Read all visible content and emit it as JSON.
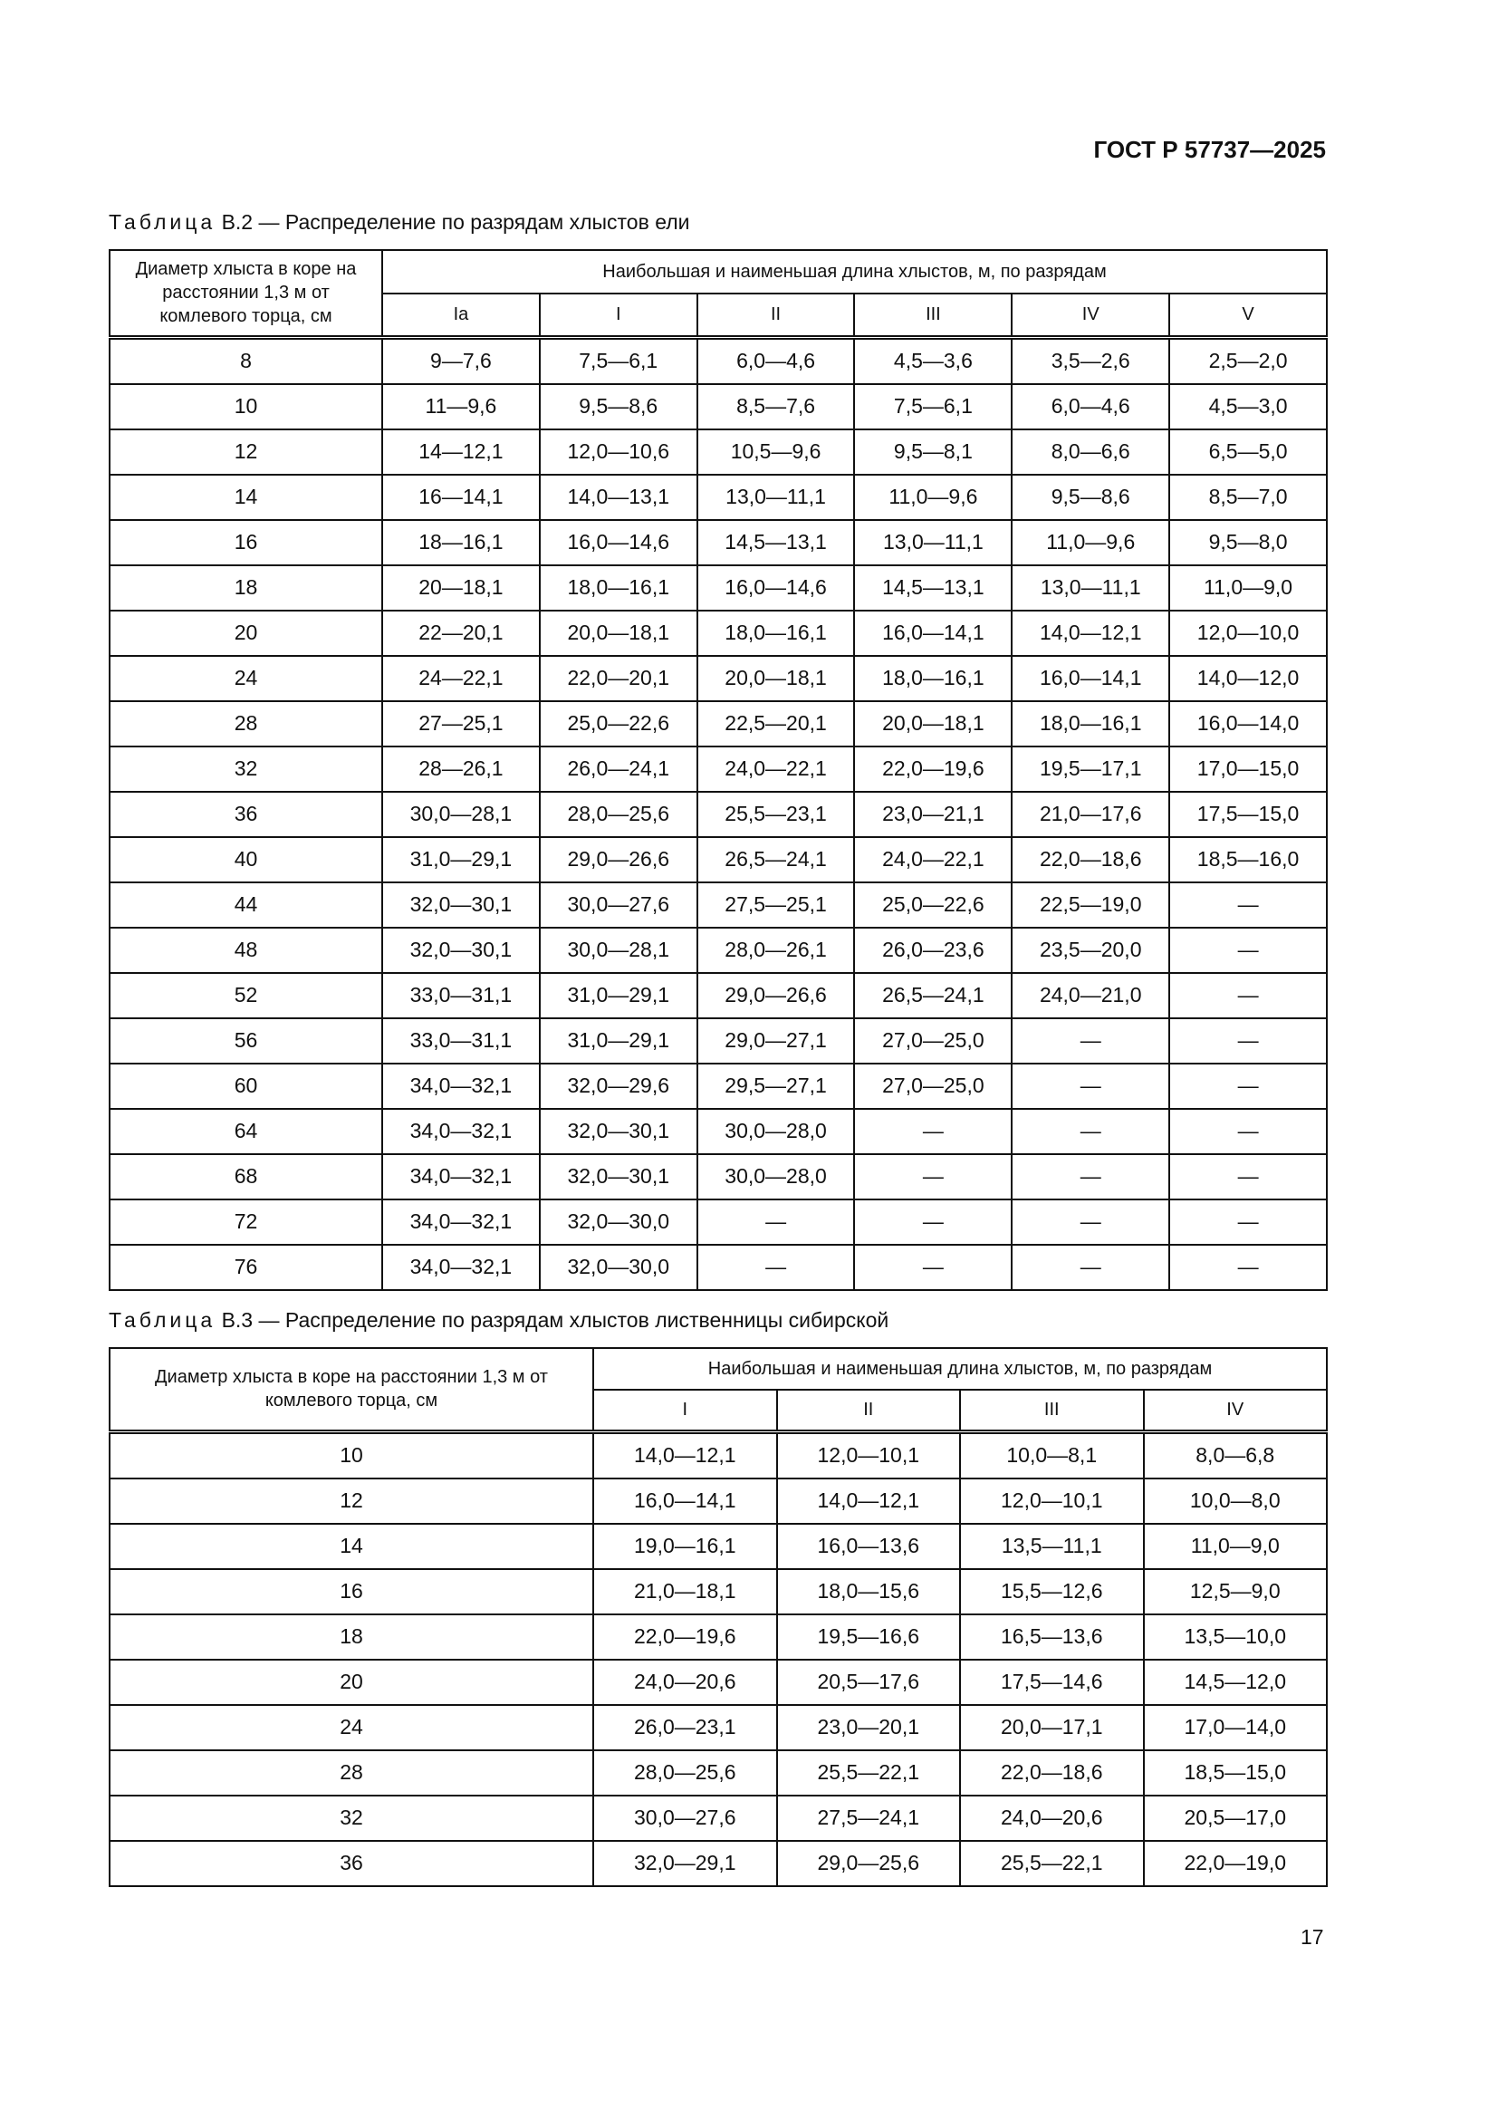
{
  "document_id": "ГОСТ Р 57737—2025",
  "page_number": "17",
  "table_b2": {
    "caption_word": "Таблица",
    "caption_text": "В.2 — Распределение по разрядам хлыстов ели",
    "diameter_header": "Диаметр хлыста в коре на расстоянии 1,3 м от комлевого торца, см",
    "length_header": "Наибольшая и наименьшая длина хлыстов, м, по разрядам",
    "grades": [
      "Ia",
      "I",
      "II",
      "III",
      "IV",
      "V"
    ],
    "rows": [
      [
        "8",
        "9—7,6",
        "7,5—6,1",
        "6,0—4,6",
        "4,5—3,6",
        "3,5—2,6",
        "2,5—2,0"
      ],
      [
        "10",
        "11—9,6",
        "9,5—8,6",
        "8,5—7,6",
        "7,5—6,1",
        "6,0—4,6",
        "4,5—3,0"
      ],
      [
        "12",
        "14—12,1",
        "12,0—10,6",
        "10,5—9,6",
        "9,5—8,1",
        "8,0—6,6",
        "6,5—5,0"
      ],
      [
        "14",
        "16—14,1",
        "14,0—13,1",
        "13,0—11,1",
        "11,0—9,6",
        "9,5—8,6",
        "8,5—7,0"
      ],
      [
        "16",
        "18—16,1",
        "16,0—14,6",
        "14,5—13,1",
        "13,0—11,1",
        "11,0—9,6",
        "9,5—8,0"
      ],
      [
        "18",
        "20—18,1",
        "18,0—16,1",
        "16,0—14,6",
        "14,5—13,1",
        "13,0—11,1",
        "11,0—9,0"
      ],
      [
        "20",
        "22—20,1",
        "20,0—18,1",
        "18,0—16,1",
        "16,0—14,1",
        "14,0—12,1",
        "12,0—10,0"
      ],
      [
        "24",
        "24—22,1",
        "22,0—20,1",
        "20,0—18,1",
        "18,0—16,1",
        "16,0—14,1",
        "14,0—12,0"
      ],
      [
        "28",
        "27—25,1",
        "25,0—22,6",
        "22,5—20,1",
        "20,0—18,1",
        "18,0—16,1",
        "16,0—14,0"
      ],
      [
        "32",
        "28—26,1",
        "26,0—24,1",
        "24,0—22,1",
        "22,0—19,6",
        "19,5—17,1",
        "17,0—15,0"
      ],
      [
        "36",
        "30,0—28,1",
        "28,0—25,6",
        "25,5—23,1",
        "23,0—21,1",
        "21,0—17,6",
        "17,5—15,0"
      ],
      [
        "40",
        "31,0—29,1",
        "29,0—26,6",
        "26,5—24,1",
        "24,0—22,1",
        "22,0—18,6",
        "18,5—16,0"
      ],
      [
        "44",
        "32,0—30,1",
        "30,0—27,6",
        "27,5—25,1",
        "25,0—22,6",
        "22,5—19,0",
        "—"
      ],
      [
        "48",
        "32,0—30,1",
        "30,0—28,1",
        "28,0—26,1",
        "26,0—23,6",
        "23,5—20,0",
        "—"
      ],
      [
        "52",
        "33,0—31,1",
        "31,0—29,1",
        "29,0—26,6",
        "26,5—24,1",
        "24,0—21,0",
        "—"
      ],
      [
        "56",
        "33,0—31,1",
        "31,0—29,1",
        "29,0—27,1",
        "27,0—25,0",
        "—",
        "—"
      ],
      [
        "60",
        "34,0—32,1",
        "32,0—29,6",
        "29,5—27,1",
        "27,0—25,0",
        "—",
        "—"
      ],
      [
        "64",
        "34,0—32,1",
        "32,0—30,1",
        "30,0—28,0",
        "—",
        "—",
        "—"
      ],
      [
        "68",
        "34,0—32,1",
        "32,0—30,1",
        "30,0—28,0",
        "—",
        "—",
        "—"
      ],
      [
        "72",
        "34,0—32,1",
        "32,0—30,0",
        "—",
        "—",
        "—",
        "—"
      ],
      [
        "76",
        "34,0—32,1",
        "32,0—30,0",
        "—",
        "—",
        "—",
        "—"
      ]
    ]
  },
  "table_b3": {
    "caption_word": "Таблица",
    "caption_text": "В.3 — Распределение по разрядам хлыстов лиственницы сибирской",
    "diameter_header": "Диаметр хлыста в коре на расстоянии 1,3 м от комлевого торца, см",
    "length_header": "Наибольшая и наименьшая длина хлыстов, м, по разрядам",
    "grades": [
      "I",
      "II",
      "III",
      "IV"
    ],
    "rows": [
      [
        "10",
        "14,0—12,1",
        "12,0—10,1",
        "10,0—8,1",
        "8,0—6,8"
      ],
      [
        "12",
        "16,0—14,1",
        "14,0—12,1",
        "12,0—10,1",
        "10,0—8,0"
      ],
      [
        "14",
        "19,0—16,1",
        "16,0—13,6",
        "13,5—11,1",
        "11,0—9,0"
      ],
      [
        "16",
        "21,0—18,1",
        "18,0—15,6",
        "15,5—12,6",
        "12,5—9,0"
      ],
      [
        "18",
        "22,0—19,6",
        "19,5—16,6",
        "16,5—13,6",
        "13,5—10,0"
      ],
      [
        "20",
        "24,0—20,6",
        "20,5—17,6",
        "17,5—14,6",
        "14,5—12,0"
      ],
      [
        "24",
        "26,0—23,1",
        "23,0—20,1",
        "20,0—17,1",
        "17,0—14,0"
      ],
      [
        "28",
        "28,0—25,6",
        "25,5—22,1",
        "22,0—18,6",
        "18,5—15,0"
      ],
      [
        "32",
        "30,0—27,6",
        "27,5—24,1",
        "24,0—20,6",
        "20,5—17,0"
      ],
      [
        "36",
        "32,0—29,1",
        "29,0—25,6",
        "25,5—22,1",
        "22,0—19,0"
      ]
    ]
  }
}
